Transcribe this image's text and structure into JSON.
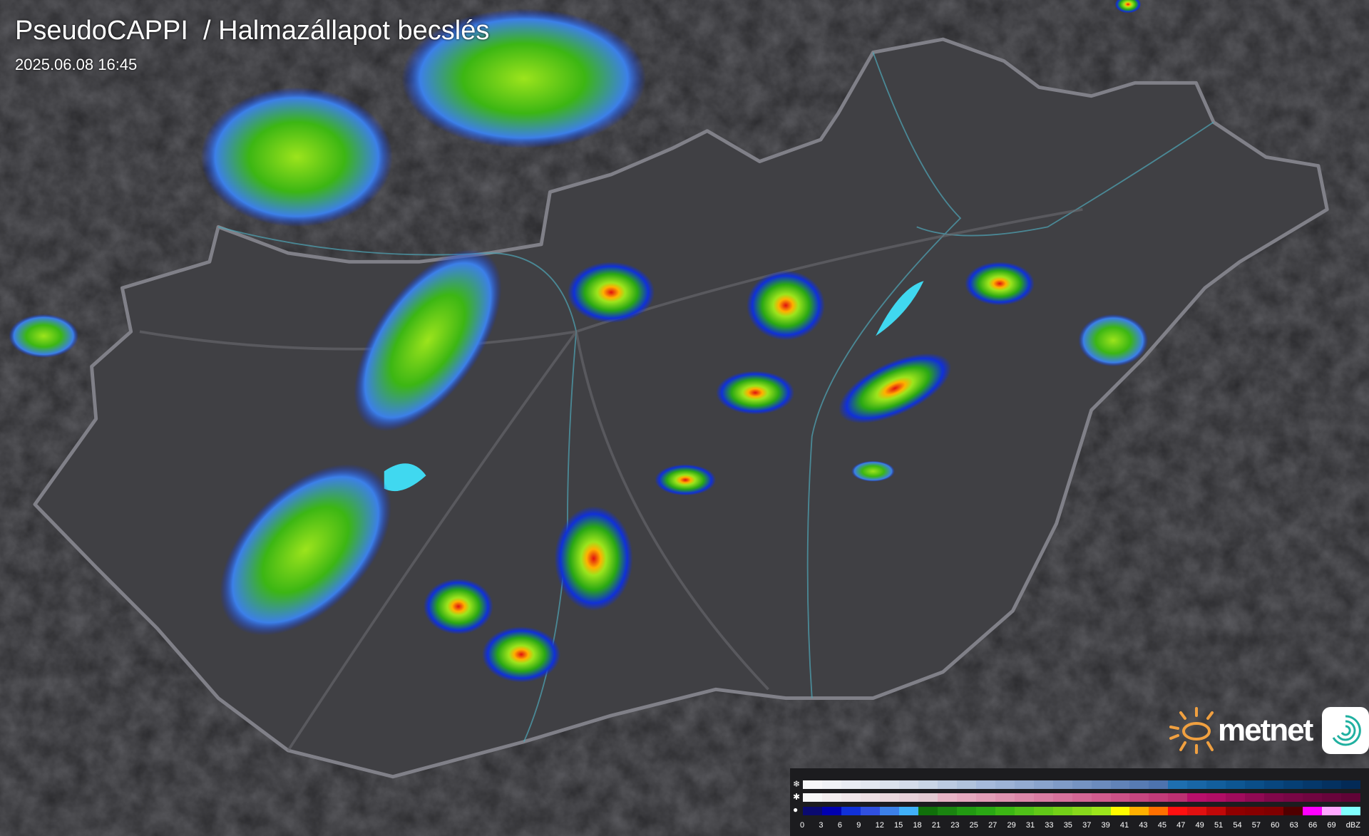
{
  "header": {
    "title": "PseudoCAPPI  / Halmazállapot becslés",
    "timestamp": "2025.06.08 16:45"
  },
  "logo": {
    "text": "metnet",
    "brand_color": "#f0a040",
    "icon": "swirl-app-icon"
  },
  "legend": {
    "unit": "dBZ",
    "labels": [
      "0",
      "3",
      "6",
      "9",
      "12",
      "15",
      "18",
      "21",
      "23",
      "25",
      "27",
      "29",
      "31",
      "33",
      "35",
      "37",
      "39",
      "41",
      "43",
      "45",
      "47",
      "49",
      "51",
      "54",
      "57",
      "60",
      "63",
      "66",
      "69"
    ],
    "rows": [
      {
        "icon": "snowflake-icon",
        "colors": [
          "#f7f7f9",
          "#f0f2f6",
          "#e9ecf3",
          "#e2e7f0",
          "#dbe2ed",
          "#d4dcea",
          "#c9d5e6",
          "#bccbe1",
          "#b1c3dc",
          "#a6badb",
          "#9db3d6",
          "#93abd1",
          "#89a3cc",
          "#7f9bc7",
          "#7593c2",
          "#6b8bbd",
          "#6183b8",
          "#577bb3",
          "#4d73ae",
          "#1e6fb0",
          "#1866a6",
          "#125e9c",
          "#0d5692",
          "#0a4e88",
          "#08467e",
          "#063f74",
          "#05386a",
          "#043160",
          "#032a56"
        ]
      },
      {
        "icon": "sleet-icon",
        "colors": [
          "#f7f7f8",
          "#f3eef0",
          "#f0e6ea",
          "#eddfe4",
          "#ead8de",
          "#e7d1d9",
          "#e4cad3",
          "#e8b4c6",
          "#e6a9bf",
          "#e39eb8",
          "#e093b1",
          "#dd88aa",
          "#da7da3",
          "#d7729c",
          "#d46795",
          "#d15c8e",
          "#cc5187",
          "#c74680",
          "#c23b79",
          "#bd3072",
          "#b80f6b",
          "#b00d65",
          "#a00b5c",
          "#900953",
          "#80074a",
          "#780645",
          "#700540",
          "#68043b",
          "#600336"
        ]
      },
      {
        "icon": "raindrop-icon",
        "colors": [
          "#0a0a70",
          "#0000b0",
          "#1030d8",
          "#3050e0",
          "#3c80e8",
          "#40b0f8",
          "#10700a",
          "#1a8410",
          "#229a12",
          "#2aa814",
          "#3cb614",
          "#50c018",
          "#62c818",
          "#74d018",
          "#88d81c",
          "#9ce41c",
          "#fffa00",
          "#ffb000",
          "#ff7000",
          "#ff1010",
          "#e01010",
          "#c00808",
          "#900000",
          "#880000",
          "#800000",
          "#500000",
          "#ff00ff",
          "#ffa8ff",
          "#80ffff"
        ]
      }
    ]
  }
}
